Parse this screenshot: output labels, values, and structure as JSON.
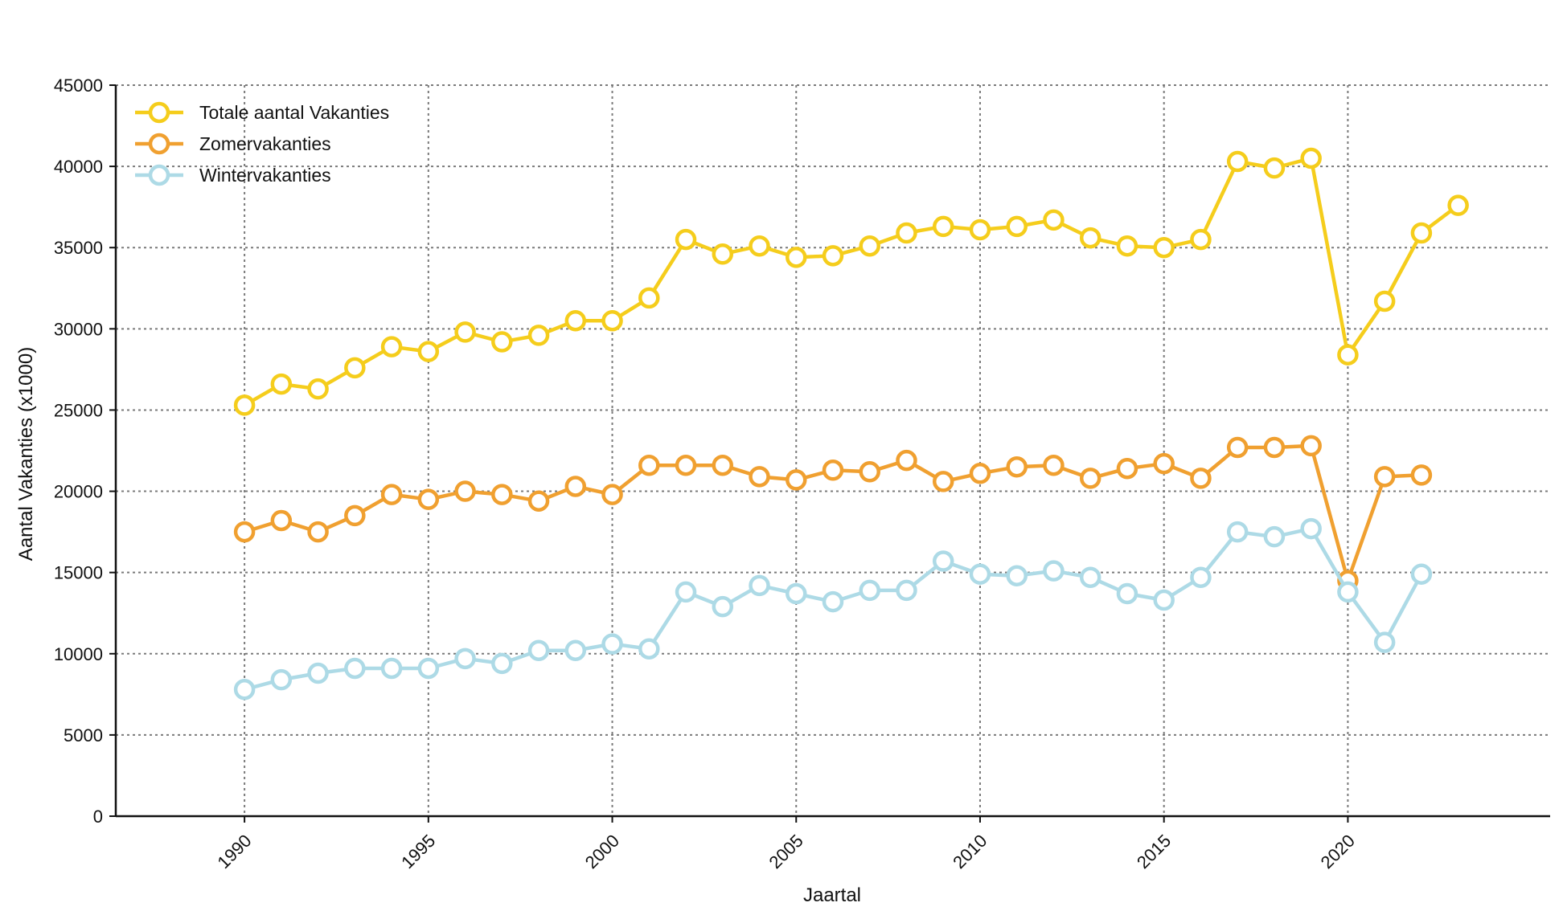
{
  "chart_data": {
    "type": "line",
    "title": "",
    "xlabel": "Jaartal",
    "ylabel": "Aantal Vakanties (x1000)",
    "xlim": [
      1986.5,
      2025.5
    ],
    "ylim": [
      0,
      45000
    ],
    "xticks": [
      "1990",
      "1995",
      "2000",
      "2005",
      "2010",
      "2015",
      "2020"
    ],
    "yticks": [
      "0",
      "5000",
      "10000",
      "15000",
      "20000",
      "25000",
      "30000",
      "35000",
      "40000",
      "45000"
    ],
    "grid": true,
    "legend_position": "top-left",
    "series": [
      {
        "name": "Totale aantal Vakanties",
        "color": "#F5CD1C",
        "x": [
          1990,
          1991,
          1992,
          1993,
          1994,
          1995,
          1996,
          1997,
          1998,
          1999,
          2000,
          2001,
          2002,
          2003,
          2004,
          2005,
          2006,
          2007,
          2008,
          2009,
          2010,
          2011,
          2012,
          2013,
          2014,
          2015,
          2016,
          2017,
          2018,
          2019,
          2020,
          2021,
          2022,
          2023
        ],
        "y": [
          25300,
          26600,
          26300,
          27600,
          28900,
          28600,
          29800,
          29200,
          29600,
          30500,
          30500,
          31900,
          35500,
          34600,
          35100,
          34400,
          34500,
          35100,
          35900,
          36300,
          36100,
          36300,
          36700,
          35600,
          35100,
          35000,
          35500,
          40300,
          39900,
          40500,
          28400,
          31700,
          35900,
          37600
        ]
      },
      {
        "name": "Zomervakanties",
        "color": "#F0A030",
        "x": [
          1990,
          1991,
          1992,
          1993,
          1994,
          1995,
          1996,
          1997,
          1998,
          1999,
          2000,
          2001,
          2002,
          2003,
          2004,
          2005,
          2006,
          2007,
          2008,
          2009,
          2010,
          2011,
          2012,
          2013,
          2014,
          2015,
          2016,
          2017,
          2018,
          2019,
          2020,
          2021,
          2022
        ],
        "y": [
          17500,
          18200,
          17500,
          18500,
          19800,
          19500,
          20000,
          19800,
          19400,
          20300,
          19800,
          21600,
          21600,
          21600,
          20900,
          20700,
          21300,
          21200,
          21900,
          20600,
          21100,
          21500,
          21600,
          20800,
          21400,
          21700,
          20800,
          22700,
          22700,
          22800,
          14500,
          20900,
          21000
        ]
      },
      {
        "name": "Wintervakanties",
        "color": "#ADDAE6",
        "x": [
          1990,
          1991,
          1992,
          1993,
          1994,
          1995,
          1996,
          1997,
          1998,
          1999,
          2000,
          2001,
          2002,
          2003,
          2004,
          2005,
          2006,
          2007,
          2008,
          2009,
          2010,
          2011,
          2012,
          2013,
          2014,
          2015,
          2016,
          2017,
          2018,
          2019,
          2020,
          2021,
          2022
        ],
        "y": [
          7800,
          8400,
          8800,
          9100,
          9100,
          9100,
          9700,
          9400,
          10200,
          10200,
          10600,
          10300,
          13800,
          12900,
          14200,
          13700,
          13200,
          13900,
          13900,
          15700,
          14900,
          14800,
          15100,
          14700,
          13700,
          13300,
          14700,
          17500,
          17200,
          17700,
          13800,
          10700,
          14900
        ]
      }
    ]
  }
}
